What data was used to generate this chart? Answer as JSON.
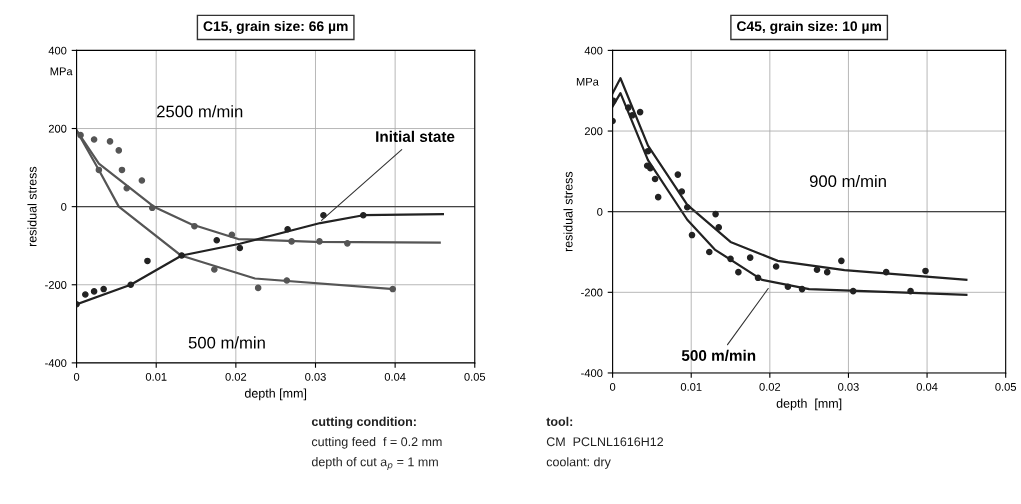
{
  "chart_data": [
    {
      "type": "line",
      "title": "C15, grain size: 66 µm",
      "xlabel": "depth [mm]",
      "ylabel": "residual stress",
      "xlim": [
        0,
        0.05
      ],
      "ylim": [
        -400,
        400
      ],
      "xticks": [
        0,
        0.01,
        0.02,
        0.03,
        0.04,
        0.05
      ],
      "yticks": [
        -400,
        -200,
        0,
        200,
        400
      ],
      "grid": true,
      "annotations": [
        "MPa",
        "2500 m/min",
        "500 m/min",
        {
          "text": "Initial state",
          "x": 0.0305,
          "y": -40
        }
      ],
      "series": [
        {
          "type": "line",
          "color": "#555555",
          "marker": "none",
          "x": [
            0,
            0.0028,
            0.0097,
            0.0144,
            0.0203,
            0.03,
            0.0456
          ],
          "values": [
            195,
            110,
            0,
            -45,
            -83,
            -90,
            -92
          ]
        },
        {
          "type": "line",
          "color": "#555555",
          "marker": "none",
          "x": [
            0,
            0.0028,
            0.0053,
            0.0131,
            0.0224,
            0.0397
          ],
          "values": [
            195,
            94,
            0,
            -125,
            -184,
            -211
          ]
        },
        {
          "type": "line",
          "color": "#222222",
          "marker": "none",
          "x": [
            0,
            0.0068,
            0.0132,
            0.0205,
            0.0306,
            0.036,
            0.046
          ],
          "values": [
            -250,
            -200,
            -125,
            -95,
            -42,
            -22,
            -19
          ]
        },
        {
          "type": "scatter",
          "color": "#555555",
          "marker": "circle",
          "x": [
            0.0005,
            0.0022,
            0.0042,
            0.0053,
            0.0057,
            0.0063,
            0.0082,
            0.0095,
            0.0148,
            0.0195,
            0.027,
            0.0305,
            0.034
          ],
          "values": [
            183,
            172,
            167,
            144,
            94,
            47,
            67,
            -3,
            -50,
            -72,
            -89,
            -89,
            -94
          ]
        },
        {
          "type": "scatter",
          "color": "#555555",
          "marker": "circle",
          "x": [
            0.0028,
            0.0173,
            0.0228,
            0.0264,
            0.0397
          ],
          "values": [
            94,
            -161,
            -208,
            -189,
            -211
          ]
        },
        {
          "type": "scatter",
          "color": "#222222",
          "marker": "circle",
          "x": [
            0,
            0.0011,
            0.0022,
            0.0034,
            0.0068,
            0.0089,
            0.0132,
            0.0176,
            0.0205,
            0.0265,
            0.031,
            0.036
          ],
          "values": [
            -250,
            -225,
            -217,
            -211,
            -200,
            -139,
            -125,
            -86,
            -106,
            -58,
            -22,
            -22
          ]
        }
      ]
    },
    {
      "type": "line",
      "title": "C45, grain size: 10 µm",
      "xlabel": "depth  [mm]",
      "ylabel": "residual stress",
      "xlim": [
        0,
        0.05
      ],
      "ylim": [
        -400,
        400
      ],
      "xticks": [
        0,
        0.01,
        0.02,
        0.03,
        0.04,
        0.05
      ],
      "yticks": [
        -400,
        -200,
        0,
        200,
        400
      ],
      "grid": true,
      "annotations": [
        "MPa",
        "900 m/min",
        {
          "text": "500 m/min",
          "x": 0.02,
          "y": -185
        }
      ],
      "series": [
        {
          "type": "line",
          "color": "#222222",
          "marker": "none",
          "x": [
            0,
            0.001,
            0.0045,
            0.0095,
            0.015,
            0.021,
            0.0295,
            0.045
          ],
          "values": [
            294,
            331,
            164,
            17,
            -75,
            -122,
            -145,
            -169
          ]
        },
        {
          "type": "line",
          "color": "#222222",
          "marker": "none",
          "x": [
            0,
            0.001,
            0.0045,
            0.0095,
            0.013,
            0.019,
            0.025,
            0.045
          ],
          "values": [
            261,
            294,
            128,
            -20,
            -94,
            -169,
            -192,
            -206
          ]
        },
        {
          "type": "scatter",
          "color": "#222222",
          "marker": "circle",
          "x": [
            0.0035,
            0.0045,
            0.0083,
            0.0088,
            0.0095,
            0.0131,
            0.0135,
            0.0175,
            0.0208,
            0.026,
            0.0273,
            0.0291,
            0.0348,
            0.0398
          ],
          "values": [
            247,
            150,
            92,
            50,
            11,
            -6,
            -39,
            -114,
            -136,
            -144,
            -150,
            -122,
            -150,
            -147
          ]
        },
        {
          "type": "scatter",
          "color": "#222222",
          "marker": "circle",
          "x": [
            0,
            0.0001,
            0.002,
            0.0025,
            0.0044,
            0.0048,
            0.0054,
            0.0058,
            0.0101,
            0.0123,
            0.015,
            0.016,
            0.0185,
            0.0223,
            0.0241,
            0.0306,
            0.0379
          ],
          "values": [
            225,
            275,
            258,
            239,
            114,
            108,
            81,
            36,
            -58,
            -100,
            -117,
            -150,
            -164,
            -186,
            -192,
            -197,
            -197
          ]
        }
      ]
    },
    {
      "type": "other",
      "annotations": [
        "cutting condition:",
        "cutting feed  f = 0.2 mm",
        "depth of cut a$_{p}$ = 1 mm",
        "tool:",
        "CM  PCLNL1616H12",
        "coolant: dry"
      ]
    }
  ]
}
